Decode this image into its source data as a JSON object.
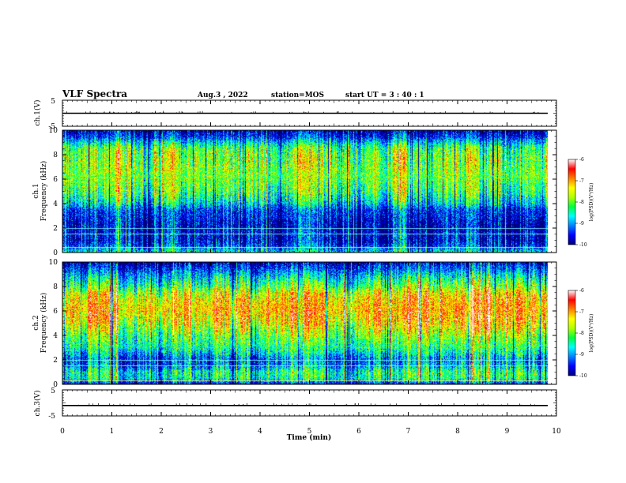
{
  "header": {
    "title": "VLF Spectra",
    "date": "Aug.3 , 2022",
    "station": "station=MOS",
    "start_ut": "start UT = 3 : 40 : 1"
  },
  "chart_data": [
    {
      "type": "line",
      "name": "ch1_waveform",
      "ylabel": "ch.1(V)",
      "x_range": [
        0,
        10
      ],
      "ylim": [
        -5,
        5
      ],
      "y_ticks": [
        5,
        -5
      ],
      "baseline_value": 0
    },
    {
      "type": "heatmap",
      "name": "ch1_spectrogram",
      "ylabel": "ch.1\nFrequency (kHz)",
      "ylabel_line1": "ch.1",
      "ylabel_line2": "Frequency (kHz)",
      "x_range": [
        0,
        10
      ],
      "ylim": [
        0,
        10
      ],
      "y_ticks": [
        0,
        2,
        4,
        6,
        8,
        10
      ],
      "colorbar": {
        "label": "log(PSD)(V²/Hz)",
        "range": [
          -10,
          -6
        ],
        "ticks": [
          -6,
          -7,
          -8,
          -9,
          -10
        ]
      },
      "description_profile": {
        "frequency_khz": [
          0,
          0.5,
          1,
          1.5,
          2,
          2.5,
          3,
          3.5,
          4,
          5,
          6,
          7,
          8,
          8.5,
          9,
          9.5,
          10
        ],
        "mean_log_psd": [
          -8.4,
          -9.2,
          -9.6,
          -9.5,
          -9.7,
          -9.6,
          -9.4,
          -9.3,
          -8.6,
          -7.9,
          -7.7,
          -7.6,
          -7.7,
          -7.9,
          -8.6,
          -9.4,
          -9.8
        ]
      },
      "horizontal_lines_khz": [
        0.45,
        1.55,
        2.0
      ]
    },
    {
      "type": "heatmap",
      "name": "ch2_spectrogram",
      "ylabel": "ch.2\nFrequency (kHz)",
      "ylabel_line1": "ch.2",
      "ylabel_line2": "Frequency (kHz)",
      "x_range": [
        0,
        10
      ],
      "ylim": [
        0,
        10
      ],
      "y_ticks": [
        0,
        2,
        4,
        6,
        8,
        10
      ],
      "colorbar": {
        "label": "log(PSD)(V²/Hz)",
        "range": [
          -10,
          -6
        ],
        "ticks": [
          -6,
          -7,
          -8,
          -9,
          -10
        ]
      },
      "description_profile": {
        "frequency_khz": [
          0,
          0.5,
          1,
          1.5,
          2,
          2.5,
          3,
          4,
          5,
          6,
          7,
          7.5,
          8,
          8.5,
          9,
          9.5,
          10
        ],
        "mean_log_psd": [
          -9.6,
          -8.3,
          -8.2,
          -8.9,
          -9.1,
          -8.6,
          -8.2,
          -7.7,
          -7.0,
          -6.7,
          -6.9,
          -7.2,
          -7.9,
          -8.3,
          -8.8,
          -9.3,
          -9.8
        ]
      },
      "horizontal_lines_khz": [
        0.35,
        1.55,
        2.0
      ]
    },
    {
      "type": "line",
      "name": "ch3_waveform",
      "ylabel": "ch.3(V)",
      "x_range": [
        0,
        10
      ],
      "ylim": [
        -5,
        5
      ],
      "y_ticks": [
        5,
        -5
      ],
      "baseline_value": -1
    }
  ],
  "x_axis": {
    "label": "Time (min)",
    "range": [
      0,
      10
    ],
    "ticks": [
      "0",
      "1",
      "2",
      "3",
      "4",
      "5",
      "6",
      "7",
      "8",
      "9",
      "10"
    ]
  },
  "colors": {
    "colormap": [
      "#00007a",
      "#0000ff",
      "#0080ff",
      "#00ffff",
      "#00ff40",
      "#b0ff00",
      "#ffff00",
      "#ff8000",
      "#ff0000",
      "#ffffff"
    ]
  }
}
